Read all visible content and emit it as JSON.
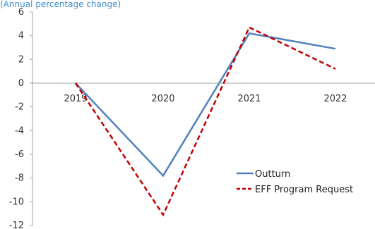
{
  "chart_data": {
    "type": "line",
    "subtitle": "(Annual percentage change)",
    "title": "",
    "xlabel": "",
    "ylabel": "",
    "categories": [
      "2019",
      "2020",
      "2021",
      "2022"
    ],
    "ylim": [
      -12,
      6
    ],
    "y_ticks": [
      "6",
      "4",
      "2",
      "0",
      "-2",
      "-4",
      "-6",
      "-8",
      "-10",
      "-12"
    ],
    "grid": false,
    "legend_position": "bottom-right",
    "series": [
      {
        "name": "Outturn",
        "values": [
          0,
          -7.8,
          4.2,
          2.9
        ],
        "color": "#4f81bd",
        "style": "solid"
      },
      {
        "name": "EFF Program Request",
        "values": [
          0,
          -11.1,
          4.7,
          1.2
        ],
        "color": "#c00000",
        "style": "dashed"
      }
    ]
  }
}
